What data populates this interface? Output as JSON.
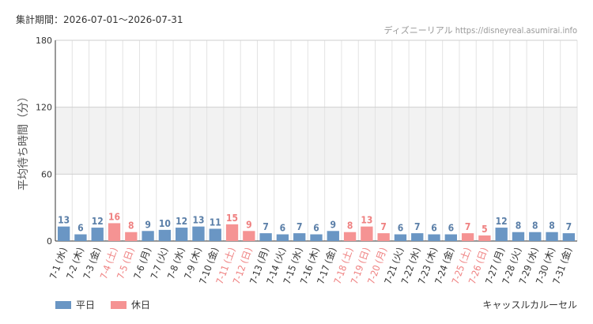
{
  "header": {
    "period": "集計期間：2026-07-01～2026-07-31",
    "source": "ディズニーリアル https://disneyreal.asumirai.info"
  },
  "footer": {
    "attraction": "キャッスルカルーセル"
  },
  "colors": {
    "weekday": "#6a96c4",
    "holiday": "#f59393",
    "weekday_label": "#5b7fa8",
    "holiday_label": "#ef8080",
    "band": "#f2f2f2",
    "grid": "#e3e3e3"
  },
  "chart_data": {
    "type": "bar",
    "ylabel": "平均待ち時間（分）",
    "ylim": [
      0,
      180
    ],
    "yticks": [
      0,
      60,
      120,
      180
    ],
    "shaded_band": [
      60,
      120
    ],
    "legend": [
      {
        "key": "weekday",
        "label": "平日"
      },
      {
        "key": "holiday",
        "label": "休日"
      }
    ],
    "categories": [
      "7-1 (水)",
      "7-2 (木)",
      "7-3 (金)",
      "7-4 (土)",
      "7-5 (日)",
      "7-6 (月)",
      "7-7 (火)",
      "7-8 (水)",
      "7-9 (木)",
      "7-10 (金)",
      "7-11 (土)",
      "7-12 (日)",
      "7-13 (月)",
      "7-14 (火)",
      "7-15 (水)",
      "7-16 (木)",
      "7-17 (金)",
      "7-18 (土)",
      "7-19 (日)",
      "7-20 (月)",
      "7-21 (火)",
      "7-22 (水)",
      "7-23 (木)",
      "7-24 (金)",
      "7-25 (土)",
      "7-26 (日)",
      "7-27 (月)",
      "7-28 (火)",
      "7-29 (水)",
      "7-30 (木)",
      "7-31 (金)"
    ],
    "values": [
      13,
      6,
      12,
      16,
      8,
      9,
      10,
      12,
      13,
      11,
      15,
      9,
      7,
      6,
      7,
      6,
      9,
      8,
      13,
      7,
      6,
      7,
      6,
      6,
      7,
      5,
      12,
      8,
      8,
      8,
      7
    ],
    "day_type": [
      "weekday",
      "weekday",
      "weekday",
      "holiday",
      "holiday",
      "weekday",
      "weekday",
      "weekday",
      "weekday",
      "weekday",
      "holiday",
      "holiday",
      "weekday",
      "weekday",
      "weekday",
      "weekday",
      "weekday",
      "holiday",
      "holiday",
      "holiday",
      "weekday",
      "weekday",
      "weekday",
      "weekday",
      "holiday",
      "holiday",
      "weekday",
      "weekday",
      "weekday",
      "weekday",
      "weekday"
    ]
  }
}
